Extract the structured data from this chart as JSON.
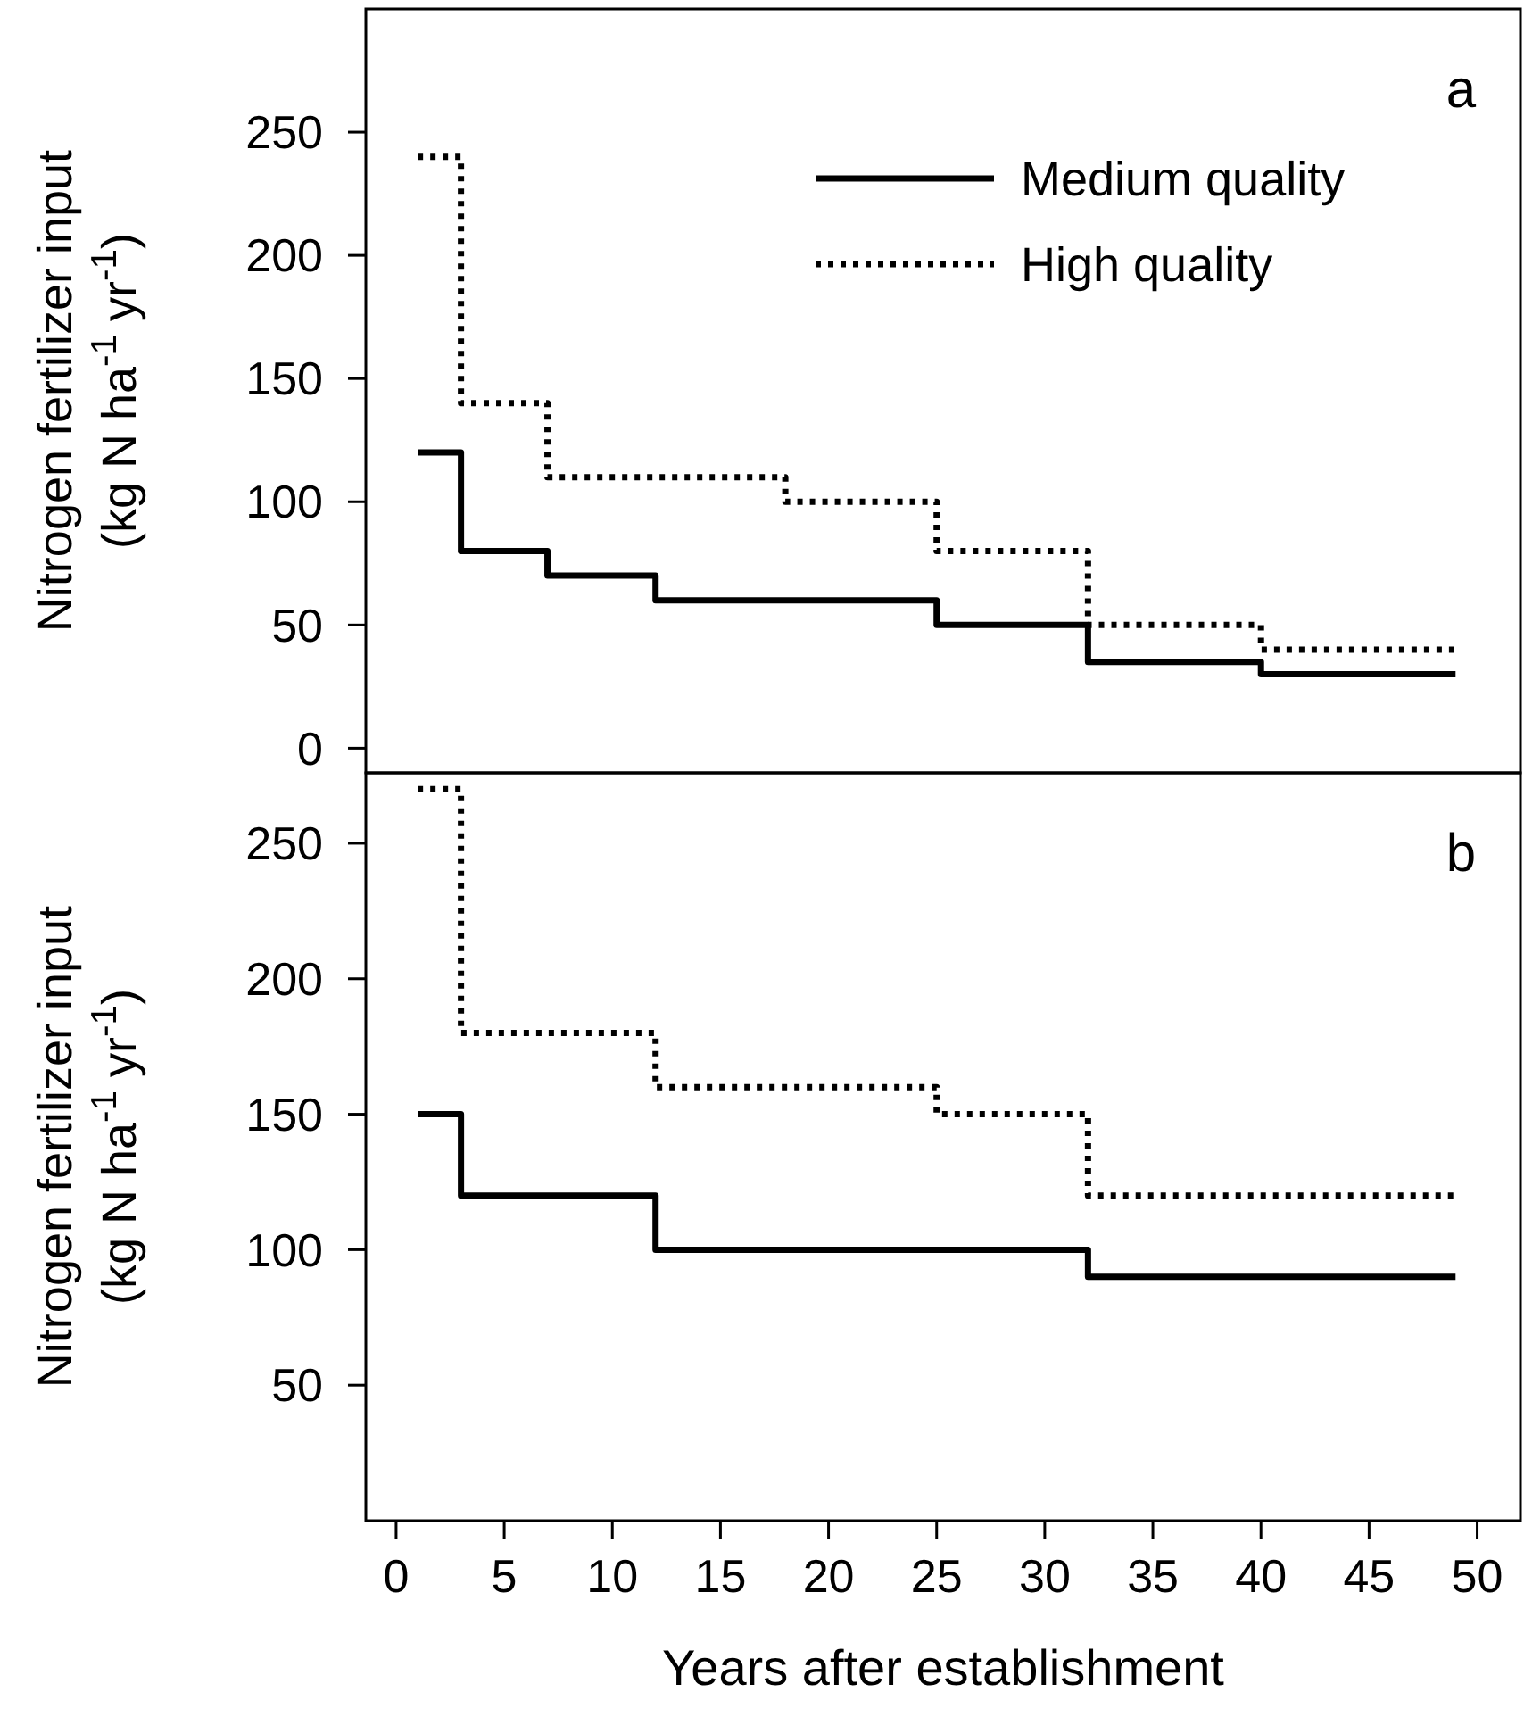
{
  "chart_data": [
    {
      "type": "step",
      "ylabel": "Nitrogen fertilizer input\n(kg N ha$^{-1}$ yr$^{-1}$)",
      "annotations": [
        "a"
      ],
      "xlim": [
        -1.4,
        52
      ],
      "ylim": [
        -10,
        300
      ],
      "yticks": [
        0,
        50,
        100,
        150,
        200,
        250
      ],
      "tick_labels": "y",
      "legend": "top right",
      "series": [
        {
          "name": "Medium quality",
          "color": "#000000",
          "line_style": "solid",
          "x": [
            1,
            3,
            7,
            12,
            25,
            32,
            40,
            49
          ],
          "values": [
            120,
            80,
            70,
            60,
            50,
            35,
            30,
            30
          ]
        },
        {
          "name": "High quality",
          "color": "#000000",
          "line_style": "dotted",
          "x": [
            1,
            3,
            7,
            18,
            25,
            32,
            40,
            49
          ],
          "values": [
            240,
            140,
            110,
            100,
            80,
            50,
            40,
            40
          ]
        }
      ]
    },
    {
      "type": "step",
      "ylabel": "Nitrogen fertilizer input\n(kg N ha$^{-1}$ yr$^{-1}$)",
      "xlabel": "Years after establishment",
      "annotations": [
        "b"
      ],
      "xlim": [
        -1.4,
        52
      ],
      "xticks": [
        0,
        5,
        10,
        15,
        20,
        25,
        30,
        35,
        40,
        45,
        50
      ],
      "ylim": [
        0,
        276
      ],
      "yticks": [
        50,
        100,
        150,
        200,
        250
      ],
      "series": [
        {
          "color": "#000000",
          "line_style": "solid",
          "x": [
            1,
            3,
            12,
            32,
            49
          ],
          "values": [
            150,
            120,
            100,
            90,
            90
          ]
        },
        {
          "color": "#000000",
          "line_style": "dotted",
          "x": [
            1,
            3,
            12,
            25,
            32,
            49
          ],
          "values": [
            270,
            180,
            160,
            150,
            120,
            120
          ]
        }
      ]
    }
  ]
}
